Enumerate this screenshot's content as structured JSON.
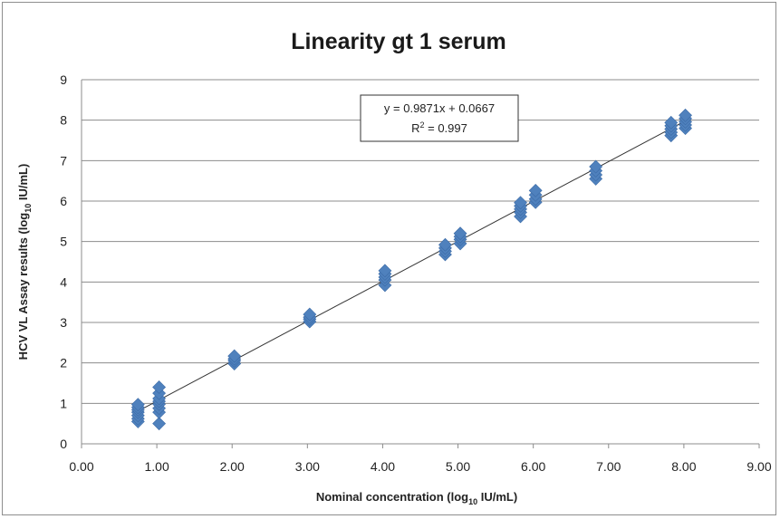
{
  "chart_data": {
    "type": "scatter",
    "title": "Linearity gt 1 serum",
    "xlabel": {
      "main": "Nominal concentration  (log",
      "sub": "10",
      "tail": " IU/mL)"
    },
    "ylabel": {
      "main": "HCV VL Assay results  (log",
      "sub": "10",
      "tail": " IU/mL)"
    },
    "xlim": [
      0,
      9
    ],
    "ylim": [
      0,
      9
    ],
    "x_ticks": [
      "0.00",
      "1.00",
      "2.00",
      "3.00",
      "4.00",
      "5.00",
      "6.00",
      "7.00",
      "8.00",
      "9.00"
    ],
    "y_ticks": [
      "0",
      "1",
      "2",
      "3",
      "4",
      "5",
      "6",
      "7",
      "8",
      "9"
    ],
    "grid": "horizontal",
    "marker": "diamond",
    "marker_color": "#4f81bd",
    "trendline": {
      "slope": 0.9871,
      "intercept": 0.0667,
      "x_range": [
        0.75,
        8.02
      ],
      "color": "#333333"
    },
    "equation_text": "y = 0.9871x + 0.0667",
    "r2_text": {
      "main": "R",
      "sup": "2",
      "tail": " = 0.997"
    },
    "points": [
      {
        "x": 0.75,
        "y": 0.55
      },
      {
        "x": 0.75,
        "y": 0.62
      },
      {
        "x": 0.75,
        "y": 0.7
      },
      {
        "x": 0.75,
        "y": 0.78
      },
      {
        "x": 0.75,
        "y": 0.84
      },
      {
        "x": 0.75,
        "y": 0.9
      },
      {
        "x": 0.75,
        "y": 0.97
      },
      {
        "x": 1.03,
        "y": 0.5
      },
      {
        "x": 1.03,
        "y": 0.78
      },
      {
        "x": 1.03,
        "y": 0.88
      },
      {
        "x": 1.03,
        "y": 0.98
      },
      {
        "x": 1.03,
        "y": 1.05
      },
      {
        "x": 1.03,
        "y": 1.12
      },
      {
        "x": 1.03,
        "y": 1.25
      },
      {
        "x": 1.03,
        "y": 1.4
      },
      {
        "x": 2.03,
        "y": 1.98
      },
      {
        "x": 2.03,
        "y": 2.05
      },
      {
        "x": 2.03,
        "y": 2.1
      },
      {
        "x": 2.03,
        "y": 2.17
      },
      {
        "x": 3.03,
        "y": 3.02
      },
      {
        "x": 3.03,
        "y": 3.08
      },
      {
        "x": 3.03,
        "y": 3.13
      },
      {
        "x": 3.03,
        "y": 3.2
      },
      {
        "x": 4.03,
        "y": 3.92
      },
      {
        "x": 4.03,
        "y": 4.05
      },
      {
        "x": 4.03,
        "y": 4.12
      },
      {
        "x": 4.03,
        "y": 4.2
      },
      {
        "x": 4.03,
        "y": 4.28
      },
      {
        "x": 4.83,
        "y": 4.68
      },
      {
        "x": 4.83,
        "y": 4.76
      },
      {
        "x": 4.83,
        "y": 4.84
      },
      {
        "x": 4.83,
        "y": 4.92
      },
      {
        "x": 5.03,
        "y": 4.95
      },
      {
        "x": 5.03,
        "y": 5.05
      },
      {
        "x": 5.03,
        "y": 5.12
      },
      {
        "x": 5.03,
        "y": 5.2
      },
      {
        "x": 5.83,
        "y": 5.62
      },
      {
        "x": 5.83,
        "y": 5.72
      },
      {
        "x": 5.83,
        "y": 5.8
      },
      {
        "x": 5.83,
        "y": 5.88
      },
      {
        "x": 5.83,
        "y": 5.96
      },
      {
        "x": 6.03,
        "y": 5.97
      },
      {
        "x": 6.03,
        "y": 6.05
      },
      {
        "x": 6.03,
        "y": 6.15
      },
      {
        "x": 6.03,
        "y": 6.26
      },
      {
        "x": 6.83,
        "y": 6.55
      },
      {
        "x": 6.83,
        "y": 6.65
      },
      {
        "x": 6.83,
        "y": 6.75
      },
      {
        "x": 6.83,
        "y": 6.85
      },
      {
        "x": 7.83,
        "y": 7.62
      },
      {
        "x": 7.83,
        "y": 7.7
      },
      {
        "x": 7.83,
        "y": 7.78
      },
      {
        "x": 7.83,
        "y": 7.86
      },
      {
        "x": 7.83,
        "y": 7.94
      },
      {
        "x": 8.02,
        "y": 7.8
      },
      {
        "x": 8.02,
        "y": 7.88
      },
      {
        "x": 8.02,
        "y": 7.96
      },
      {
        "x": 8.02,
        "y": 8.04
      },
      {
        "x": 8.02,
        "y": 8.12
      }
    ]
  }
}
